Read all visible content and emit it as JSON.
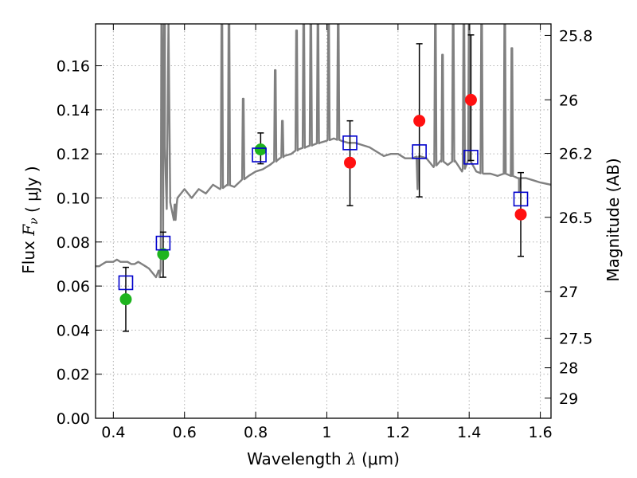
{
  "chart_data": {
    "type": "scatter",
    "title": "",
    "xlabel": "Wavelength  λ (μm)",
    "ylabel": "Flux  F_ν  ( μJy )",
    "ylabel_right": "Magnitude (AB)",
    "xlim": [
      0.35,
      1.63
    ],
    "ylim": [
      0.0,
      0.179
    ],
    "grid": true,
    "legend": "none",
    "x_ticks": [
      0.4,
      0.6,
      0.8,
      1.0,
      1.2,
      1.4,
      1.6
    ],
    "x_tick_labels": [
      "0.4",
      "0.6",
      "0.8",
      "1",
      "1.2",
      "1.4",
      "1.6"
    ],
    "y_ticks": [
      0.0,
      0.02,
      0.04,
      0.06,
      0.08,
      0.1,
      0.12,
      0.14,
      0.16
    ],
    "y_tick_labels": [
      "0.00",
      "0.02",
      "0.04",
      "0.06",
      "0.08",
      "0.10",
      "0.12",
      "0.14",
      "0.16"
    ],
    "right_ticks": [
      {
        "label": "25.8",
        "mag": 25.8
      },
      {
        "label": "26",
        "mag": 26.0
      },
      {
        "label": "26.2",
        "mag": 26.2
      },
      {
        "label": "26.5",
        "mag": 26.5
      },
      {
        "label": "27",
        "mag": 27.0
      },
      {
        "label": "27.5",
        "mag": 27.5
      },
      {
        "label": "28",
        "mag": 28.0
      },
      {
        "label": "29",
        "mag": 29.0
      }
    ],
    "colors": {
      "model_spectrum": "#808080",
      "green_points": "#1eb41e",
      "red_points": "#ff1010",
      "model_photometry": "#0000cc",
      "error_bars": "#000000",
      "grid": "#b0b0b0"
    },
    "model_spectrum": {
      "x": [
        0.35,
        0.36,
        0.37,
        0.38,
        0.39,
        0.4,
        0.41,
        0.42,
        0.43,
        0.44,
        0.45,
        0.46,
        0.47,
        0.48,
        0.49,
        0.5,
        0.51,
        0.52,
        0.53,
        0.535,
        0.54,
        0.545,
        0.55,
        0.555,
        0.56,
        0.57,
        0.575,
        0.58,
        0.59,
        0.6,
        0.62,
        0.64,
        0.66,
        0.68,
        0.7,
        0.72,
        0.74,
        0.76,
        0.78,
        0.8,
        0.82,
        0.84,
        0.86,
        0.88,
        0.9,
        0.92,
        0.94,
        0.96,
        0.98,
        1.0,
        1.02,
        1.04,
        1.06,
        1.08,
        1.1,
        1.12,
        1.14,
        1.16,
        1.18,
        1.2,
        1.22,
        1.24,
        1.26,
        1.28,
        1.3,
        1.32,
        1.34,
        1.36,
        1.38,
        1.4,
        1.42,
        1.44,
        1.46,
        1.48,
        1.5,
        1.52,
        1.54,
        1.56,
        1.58,
        1.6,
        1.63
      ],
      "y": [
        0.069,
        0.069,
        0.07,
        0.071,
        0.071,
        0.071,
        0.072,
        0.071,
        0.071,
        0.071,
        0.07,
        0.07,
        0.071,
        0.07,
        0.069,
        0.068,
        0.066,
        0.064,
        0.067,
        0.18,
        0.085,
        0.18,
        0.095,
        0.18,
        0.098,
        0.09,
        0.097,
        0.1,
        0.102,
        0.104,
        0.1,
        0.104,
        0.102,
        0.106,
        0.104,
        0.106,
        0.105,
        0.108,
        0.11,
        0.112,
        0.113,
        0.115,
        0.117,
        0.119,
        0.12,
        0.122,
        0.123,
        0.124,
        0.125,
        0.126,
        0.127,
        0.126,
        0.125,
        0.125,
        0.124,
        0.123,
        0.121,
        0.119,
        0.12,
        0.12,
        0.118,
        0.118,
        0.119,
        0.118,
        0.114,
        0.117,
        0.115,
        0.117,
        0.112,
        0.117,
        0.112,
        0.111,
        0.111,
        0.11,
        0.111,
        0.11,
        0.109,
        0.109,
        0.108,
        0.107,
        0.106
      ]
    },
    "spectrum_emission_spikes": [
      {
        "x": 0.542,
        "peak": 0.18
      },
      {
        "x": 0.705,
        "peak": 0.18
      },
      {
        "x": 0.725,
        "peak": 0.18
      },
      {
        "x": 0.765,
        "peak": 0.145
      },
      {
        "x": 0.855,
        "peak": 0.158
      },
      {
        "x": 0.875,
        "peak": 0.135
      },
      {
        "x": 0.915,
        "peak": 0.176
      },
      {
        "x": 0.935,
        "peak": 0.18
      },
      {
        "x": 0.955,
        "peak": 0.18
      },
      {
        "x": 0.975,
        "peak": 0.18
      },
      {
        "x": 1.005,
        "peak": 0.18
      },
      {
        "x": 1.032,
        "peak": 0.18
      },
      {
        "x": 1.305,
        "peak": 0.18
      },
      {
        "x": 1.325,
        "peak": 0.165
      },
      {
        "x": 1.355,
        "peak": 0.18
      },
      {
        "x": 1.385,
        "peak": 0.18
      },
      {
        "x": 1.4,
        "peak": 0.18
      },
      {
        "x": 1.435,
        "peak": 0.18
      },
      {
        "x": 1.5,
        "peak": 0.18
      },
      {
        "x": 1.52,
        "peak": 0.168
      }
    ],
    "spectrum_absorption_dips": [
      {
        "x": 0.53,
        "trough": 0.064
      },
      {
        "x": 0.575,
        "trough": 0.09
      },
      {
        "x": 1.255,
        "trough": 0.104
      },
      {
        "x": 1.54,
        "trough": 0.103
      }
    ],
    "model_photometry": {
      "x": [
        0.435,
        0.54,
        0.81,
        1.065,
        1.26,
        1.405,
        1.545
      ],
      "y": [
        0.0615,
        0.0795,
        0.1195,
        0.125,
        0.121,
        0.1185,
        0.0995
      ]
    },
    "observed_green": {
      "x": [
        0.435,
        0.54,
        0.814
      ],
      "y": [
        0.054,
        0.0745,
        0.122
      ],
      "yerr_low": [
        0.0395,
        0.064,
        0.1155
      ],
      "yerr_high": [
        0.0685,
        0.0845,
        0.1295
      ]
    },
    "observed_red": {
      "x": [
        1.065,
        1.26,
        1.405,
        1.545
      ],
      "y": [
        0.116,
        0.135,
        0.1445,
        0.0925
      ],
      "yerr_low": [
        0.0965,
        0.1005,
        0.117,
        0.0735
      ],
      "yerr_high": [
        0.135,
        0.17,
        0.174,
        0.1115
      ]
    }
  }
}
